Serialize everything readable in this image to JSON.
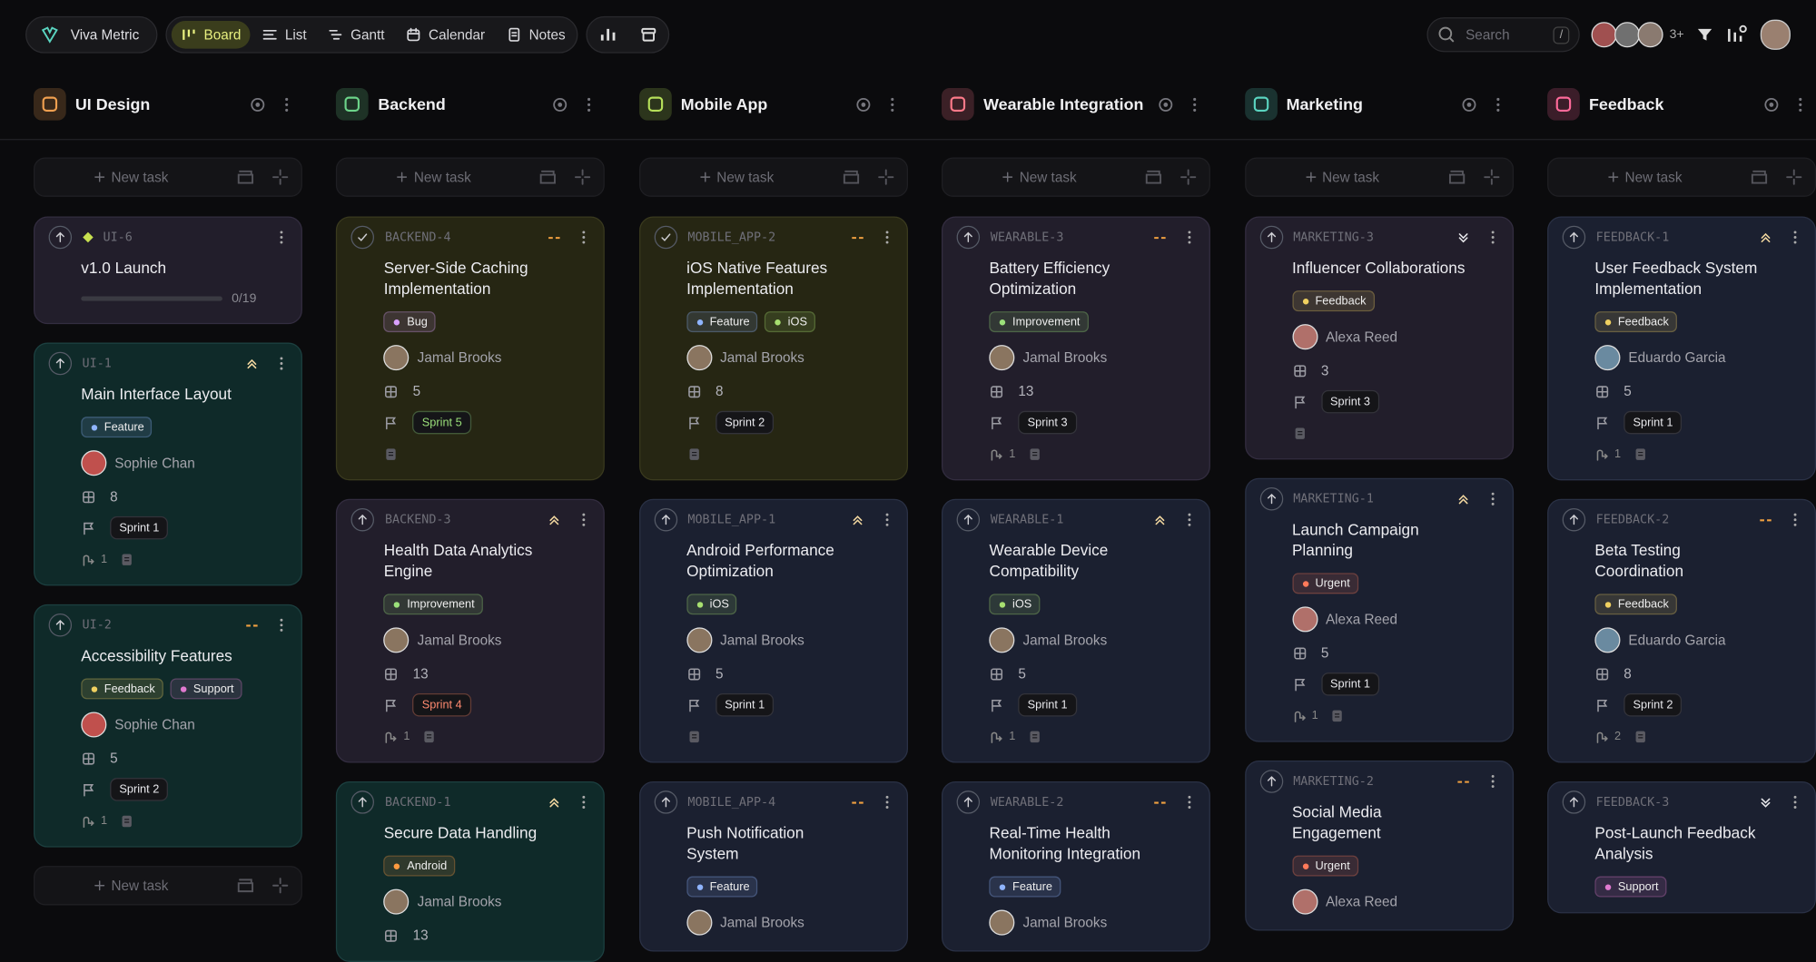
{
  "nav": {
    "workspace": "Viva Metric",
    "views": [
      {
        "label": "Board",
        "active": true
      },
      {
        "label": "List"
      },
      {
        "label": "Gantt"
      },
      {
        "label": "Calendar"
      },
      {
        "label": "Notes"
      }
    ],
    "search": "Search",
    "search_key": "/",
    "more_members": "3+"
  },
  "new_task": "New task",
  "columns": [
    {
      "name": "UI Design",
      "color": "#f0a050",
      "cards": [
        {
          "id": "UI-6",
          "title": "v1.0 Launch",
          "progress": "0/19",
          "theme": "purple"
        },
        {
          "id": "UI-1",
          "priority": "high",
          "title": "Main Interface Layout",
          "tags": [
            {
              "label": "Feature",
              "color": "#8fb4ff"
            }
          ],
          "assignee": "Sophie Chan",
          "avatar": "#c0504d",
          "points": 8,
          "sprint": "Sprint 1",
          "subtasks": 1,
          "theme": "teal"
        },
        {
          "id": "UI-2",
          "priority": "medium",
          "title": "Accessibility Features",
          "tags": [
            {
              "label": "Feedback",
              "color": "#f0d060"
            },
            {
              "label": "Support",
              "color": "#e07ad0"
            }
          ],
          "assignee": "Sophie Chan",
          "avatar": "#c0504d",
          "points": 5,
          "sprint": "Sprint 2",
          "subtasks": 1,
          "theme": "teal"
        }
      ],
      "bottom_new_task": true
    },
    {
      "name": "Backend",
      "color": "#6cd48a",
      "cards": [
        {
          "id": "BACKEND-4",
          "done": true,
          "priority": "medium",
          "title": "Server-Side Caching Implementation",
          "tags": [
            {
              "label": "Bug",
              "color": "#d9a0ff"
            }
          ],
          "assignee": "Jamal Brooks",
          "avatar": "#8a7560",
          "points": 5,
          "sprint": "Sprint 5",
          "sprint_color": "#9be07a",
          "theme": "olive"
        },
        {
          "id": "BACKEND-3",
          "priority": "high",
          "title": "Health Data Analytics Engine",
          "tags": [
            {
              "label": "Improvement",
              "color": "#9be07a"
            }
          ],
          "assignee": "Jamal Brooks",
          "avatar": "#8a7560",
          "points": 13,
          "sprint": "Sprint 4",
          "sprint_color": "#ff8a70",
          "subtasks": 1,
          "theme": "purple"
        },
        {
          "id": "BACKEND-1",
          "priority": "high",
          "title": "Secure Data Handling",
          "tags": [
            {
              "label": "Android",
              "color": "#ff9a40"
            }
          ],
          "assignee": "Jamal Brooks",
          "avatar": "#8a7560",
          "points": 13,
          "theme": "teal"
        }
      ]
    },
    {
      "name": "Mobile App",
      "color": "#b6e05a",
      "cards": [
        {
          "id": "MOBILE_APP-2",
          "done": true,
          "priority": "medium",
          "title": "iOS Native Features Implementation",
          "tags": [
            {
              "label": "Feature",
              "color": "#8fb4ff"
            },
            {
              "label": "iOS",
              "color": "#a8e070"
            }
          ],
          "assignee": "Jamal Brooks",
          "avatar": "#8a7560",
          "points": 8,
          "sprint": "Sprint 2",
          "theme": "olive"
        },
        {
          "id": "MOBILE_APP-1",
          "priority": "high",
          "title": "Android Performance Optimization",
          "tags": [
            {
              "label": "iOS",
              "color": "#a8e070"
            }
          ],
          "assignee": "Jamal Brooks",
          "avatar": "#8a7560",
          "points": 5,
          "sprint": "Sprint 1",
          "theme": "navy"
        },
        {
          "id": "MOBILE_APP-4",
          "priority": "medium",
          "title": "Push Notification System",
          "tags": [
            {
              "label": "Feature",
              "color": "#8fb4ff"
            }
          ],
          "assignee": "Jamal Brooks",
          "avatar": "#8a7560",
          "theme": "navy"
        }
      ]
    },
    {
      "name": "Wearable Integration",
      "color": "#ff7a8a",
      "cards": [
        {
          "id": "WEARABLE-3",
          "priority": "medium",
          "title": "Battery Efficiency Optimization",
          "tags": [
            {
              "label": "Improvement",
              "color": "#9be07a"
            }
          ],
          "assignee": "Jamal Brooks",
          "avatar": "#8a7560",
          "points": 13,
          "sprint": "Sprint 3",
          "subtasks": 1,
          "theme": "purple"
        },
        {
          "id": "WEARABLE-1",
          "priority": "high",
          "title": "Wearable Device Compatibility",
          "tags": [
            {
              "label": "iOS",
              "color": "#a8e070"
            }
          ],
          "assignee": "Jamal Brooks",
          "avatar": "#8a7560",
          "points": 5,
          "sprint": "Sprint 1",
          "subtasks": 1,
          "theme": "navy"
        },
        {
          "id": "WEARABLE-2",
          "priority": "medium",
          "title": "Real-Time Health Monitoring Integration",
          "tags": [
            {
              "label": "Feature",
              "color": "#8fb4ff"
            }
          ],
          "assignee": "Jamal Brooks",
          "avatar": "#8a7560",
          "theme": "navy"
        }
      ]
    },
    {
      "name": "Marketing",
      "color": "#5ad4c0",
      "cards": [
        {
          "id": "MARKETING-3",
          "priority": "low",
          "title": "Influencer Collaborations",
          "tags": [
            {
              "label": "Feedback",
              "color": "#f0d060"
            }
          ],
          "assignee": "Alexa Reed",
          "avatar": "#b0706a",
          "points": 3,
          "sprint": "Sprint 3",
          "theme": "purple"
        },
        {
          "id": "MARKETING-1",
          "priority": "high",
          "title": "Launch Campaign Planning",
          "tags": [
            {
              "label": "Urgent",
              "color": "#ff7a5a"
            }
          ],
          "assignee": "Alexa Reed",
          "avatar": "#b0706a",
          "points": 5,
          "sprint": "Sprint 1",
          "subtasks": 1,
          "theme": "navy"
        },
        {
          "id": "MARKETING-2",
          "priority": "medium",
          "title": "Social Media Engagement",
          "tags": [
            {
              "label": "Urgent",
              "color": "#ff7a5a"
            }
          ],
          "assignee": "Alexa Reed",
          "avatar": "#b0706a",
          "theme": "navy"
        }
      ]
    },
    {
      "name": "Feedback",
      "color": "#ff6a9a",
      "cards": [
        {
          "id": "FEEDBACK-1",
          "priority": "high",
          "title": "User Feedback System Implementation",
          "tags": [
            {
              "label": "Feedback",
              "color": "#f0d060"
            }
          ],
          "assignee": "Eduardo Garcia",
          "avatar": "#6a8aa0",
          "points": 5,
          "sprint": "Sprint 1",
          "subtasks": 1,
          "theme": "navy"
        },
        {
          "id": "FEEDBACK-2",
          "priority": "medium",
          "title": "Beta Testing Coordination",
          "tags": [
            {
              "label": "Feedback",
              "color": "#f0d060"
            }
          ],
          "assignee": "Eduardo Garcia",
          "avatar": "#6a8aa0",
          "points": 8,
          "sprint": "Sprint 2",
          "subtasks": 2,
          "theme": "navy"
        },
        {
          "id": "FEEDBACK-3",
          "priority": "low",
          "title": "Post-Launch Feedback Analysis",
          "tags": [
            {
              "label": "Support",
              "color": "#e07ad0"
            }
          ],
          "theme": "navy"
        }
      ]
    }
  ]
}
